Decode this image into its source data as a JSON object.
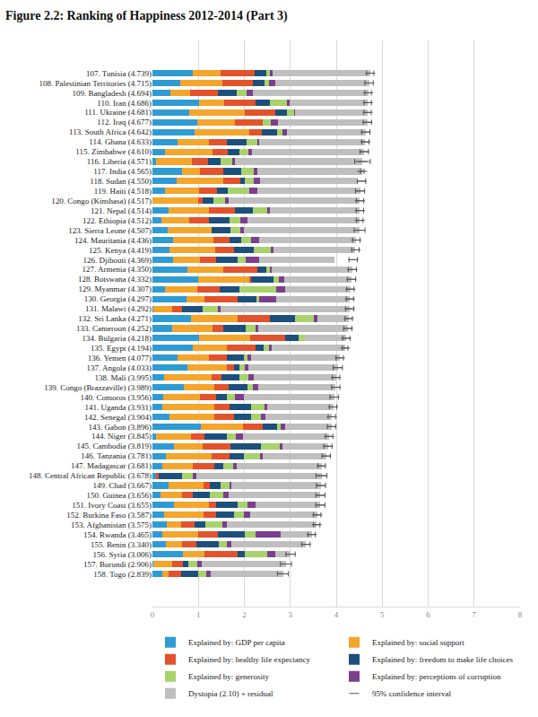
{
  "chart_data": {
    "type": "bar",
    "orientation": "horizontal",
    "stacked": true,
    "grid": true,
    "legend": "bottom",
    "title": "Figure 2.2: Ranking of Happiness 2012-2014 (Part 3)",
    "categories": [
      "107. Tunisia (4.739)",
      "108. Palestinian Territories (4.715)",
      "109. Bangladesh (4.694)",
      "110. Iran (4.686)",
      "111. Ukraine (4.681)",
      "112. Iraq (4.677)",
      "113. South Africa (4.642)",
      "114. Ghana (4.633)",
      "115. Zimbabwe (4.610)",
      "116. Liberia (4.571)",
      "117. India (4.565)",
      "118. Sudan (4.550)",
      "119. Haiti (4.518)",
      "120. Congo (Kinshasa) (4.517)",
      "121. Nepal (4.514)",
      "122. Ethiopia (4.512)",
      "123. Sierra Leone (4.507)",
      "124. Mauritania (4.436)",
      "125. Kenya (4.419)",
      "126. Djibouti (4.369)",
      "127. Armenia (4.350)",
      "128. Botswana (4.332)",
      "129. Myanmar (4.307)",
      "130. Georgia (4.297)",
      "131. Malawi (4.292)",
      "132. Sri Lanka (4.271)",
      "133. Cameroon (4.252)",
      "134. Bulgaria (4.218)",
      "135. Egypt (4.194)",
      "136. Yemen (4.077)",
      "137. Angola (4.033)",
      "138. Mali (3.995)",
      "139. Congo (Brazzaville) (3.989)",
      "140. Comoros (3.956)",
      "141. Uganda (3.931)",
      "142. Senegal (3.904)",
      "143. Gabon (3.896)",
      "144. Niger (3.845)",
      "145. Cambodia (3.819)",
      "146. Tanzania (3.781)",
      "147. Madagascar (3.681)",
      "148. Central African Republic (3.678)",
      "149. Chad (3.667)",
      "150. Guinea (3.656)",
      "151. Ivory Coast (3.655)",
      "152. Burkina Faso (3.587)",
      "153. Afghanistan (3.575)",
      "154. Rwanda (3.465)",
      "155. Benin (3.340)",
      "156. Syria (3.006)",
      "157. Burundi (2.906)",
      "158. Togo (2.839)"
    ],
    "series": [
      {
        "name": "Explained by: GDP per capita",
        "color": "#2e9bd3",
        "values": [
          0.881,
          0.599,
          0.398,
          1.009,
          0.799,
          0.985,
          0.92,
          0.546,
          0.271,
          0.071,
          0.645,
          0.521,
          0.267,
          0,
          0.36,
          0.191,
          0.33,
          0.454,
          0.365,
          0.44,
          0.768,
          0.994,
          0.271,
          0.742,
          0.016,
          0.835,
          0.423,
          1.012,
          0.882,
          0.546,
          0.758,
          0.261,
          0.679,
          0.239,
          0.211,
          0.365,
          1.06,
          0.069,
          0.46,
          0.285,
          0.208,
          0.079,
          0.342,
          0.174,
          0.465,
          0.258,
          0.32,
          0.222,
          0.287,
          0.663,
          0.015,
          0.209
        ]
      },
      {
        "name": "Explained by: social support",
        "color": "#f4a52c",
        "values": [
          0.604,
          0.926,
          0.431,
          0.544,
          1.203,
          0.819,
          1.185,
          0.68,
          1.033,
          0.79,
          0.382,
          1.014,
          0.743,
          1.001,
          0.864,
          0.604,
          0.956,
          0.869,
          0.999,
          0.592,
          0.777,
          1.105,
          0.709,
          0.386,
          0.411,
          1.019,
          0.888,
          1.106,
          0.747,
          0.681,
          0.86,
          1.035,
          0.663,
          0.793,
          1.133,
          0.976,
          0.905,
          0.773,
          0.627,
          1.003,
          0.668,
          0,
          0.761,
          0.465,
          0.771,
          0.852,
          0.303,
          0.774,
          0.354,
          0.475,
          0.416,
          0.14
        ]
      },
      {
        "name": "Explained by: healthy life expectancy",
        "color": "#e2522b",
        "values": [
          0.738,
          0.66,
          0.602,
          0.698,
          0.674,
          0.602,
          0.277,
          0.401,
          0.335,
          0.342,
          0.515,
          0.369,
          0.388,
          0.098,
          0.569,
          0.441,
          0,
          0.359,
          0.414,
          0.363,
          0.73,
          0.048,
          0.482,
          0.729,
          0.226,
          0.708,
          0.234,
          0.766,
          0.617,
          0.401,
          0.167,
          0.206,
          0.311,
          0.363,
          0.339,
          0.435,
          0.434,
          0.297,
          0.611,
          0.382,
          0.467,
          0.067,
          0.15,
          0.24,
          0.152,
          0.271,
          0.303,
          0.429,
          0.319,
          0.722,
          0.224,
          0.284
        ]
      },
      {
        "name": "Explained by: freedom to make life choices",
        "color": "#1d4f7c",
        "values": [
          0.263,
          0.245,
          0.408,
          0.3,
          0.251,
          0,
          0.332,
          0.423,
          0.259,
          0.285,
          0.398,
          0.101,
          0.244,
          0.226,
          0.383,
          0.434,
          0.408,
          0.242,
          0.422,
          0.461,
          0.198,
          0.495,
          0.44,
          0.406,
          0.431,
          0.537,
          0.493,
          0.306,
          0.173,
          0.356,
          0.104,
          0.389,
          0.415,
          0.229,
          0.457,
          0.368,
          0.319,
          0.477,
          0.662,
          0.329,
          0.192,
          0.489,
          0.235,
          0.377,
          0.469,
          0.395,
          0.234,
          0.592,
          0.485,
          0.157,
          0.119,
          0.365
        ]
      },
      {
        "name": "Explained by: generosity",
        "color": "#a8d26c",
        "values": [
          0.064,
          0.113,
          0.212,
          0.381,
          0.153,
          0.179,
          0.12,
          0.231,
          0.19,
          0.244,
          0.265,
          0.191,
          0.462,
          0.248,
          0.323,
          0.243,
          0.215,
          0.219,
          0.375,
          0.181,
          0.079,
          0.105,
          0.796,
          0.055,
          0.331,
          0.408,
          0.206,
          0.119,
          0.113,
          0.091,
          0.123,
          0.188,
          0.124,
          0.174,
          0.291,
          0.208,
          0.068,
          0.194,
          0.404,
          0.344,
          0.213,
          0.238,
          0.184,
          0.287,
          0.202,
          0.217,
          0.365,
          0.226,
          0.183,
          0.472,
          0.197,
          0.167
        ]
      },
      {
        "name": "Explained by: perceptions of corruption",
        "color": "#7b3f8e",
        "values": [
          0.064,
          0.129,
          0.126,
          0.059,
          0.03,
          0.138,
          0.089,
          0.044,
          0.081,
          0.062,
          0.085,
          0.147,
          0.172,
          0.076,
          0.059,
          0.15,
          0.088,
          0.175,
          0.058,
          0.281,
          0.039,
          0.125,
          0.19,
          0.383,
          0.07,
          0.092,
          0.058,
          0.009,
          0.063,
          0.079,
          0.071,
          0.124,
          0.117,
          0.199,
          0.073,
          0.107,
          0.111,
          0.156,
          0.072,
          0.057,
          0.081,
          0.083,
          0.053,
          0.121,
          0.179,
          0.128,
          0.097,
          0.552,
          0.08,
          0.189,
          0.101,
          0.107
        ]
      },
      {
        "name": "Dystopia (2.10) + residual",
        "color": "#bfbfbf",
        "values": [
          2.125,
          2.047,
          2.518,
          1.694,
          1.571,
          1.953,
          1.72,
          2.309,
          2.442,
          2.777,
          2.275,
          2.1,
          2.242,
          2.867,
          1.956,
          2.449,
          2.51,
          2.11,
          1.786,
          1.652,
          1.759,
          1.462,
          1.418,
          1.595,
          2.808,
          0.671,
          1.951,
          0.9,
          1.599,
          1.923,
          1.949,
          1.793,
          1.681,
          1.958,
          1.428,
          1.444,
          0.999,
          1.879,
          0.982,
          1.381,
          1.851,
          2.722,
          1.943,
          1.992,
          1.417,
          1.465,
          1.952,
          0.67,
          1.633,
          0.329,
          1.833,
          1.567
        ]
      }
    ],
    "interval": {
      "name": "95% confidence interval",
      "color": "#555555",
      "values": [
        4.739,
        4.715,
        4.694,
        4.686,
        4.681,
        4.677,
        4.642,
        4.633,
        4.61,
        4.571,
        4.565,
        4.55,
        4.518,
        4.517,
        4.514,
        4.512,
        4.507,
        4.436,
        4.419,
        4.369,
        4.35,
        4.332,
        4.307,
        4.297,
        4.292,
        4.271,
        4.252,
        4.218,
        4.194,
        4.077,
        4.033,
        3.995,
        3.989,
        3.956,
        3.931,
        3.904,
        3.896,
        3.845,
        3.819,
        3.781,
        3.681,
        3.678,
        3.667,
        3.656,
        3.655,
        3.587,
        3.575,
        3.465,
        3.34,
        3.006,
        2.906,
        2.839
      ],
      "errors": [
        0.08,
        0.09,
        0.07,
        0.08,
        0.08,
        0.09,
        0.09,
        0.08,
        0.09,
        0.17,
        0.04,
        0.09,
        0.1,
        0.08,
        0.08,
        0.07,
        0.12,
        0.08,
        0.08,
        0.09,
        0.09,
        0.09,
        0.08,
        0.08,
        0.09,
        0.08,
        0.09,
        0.08,
        0.06,
        0.08,
        0.1,
        0.08,
        0.09,
        0.09,
        0.08,
        0.08,
        0.09,
        0.08,
        0.09,
        0.09,
        0.08,
        0.12,
        0.1,
        0.1,
        0.1,
        0.08,
        0.07,
        0.08,
        0.09,
        0.1,
        0.12,
        0.12
      ]
    },
    "xlim": [
      0,
      8
    ],
    "xticks": [
      0,
      1,
      2,
      3,
      4,
      5,
      6,
      7,
      8
    ]
  }
}
